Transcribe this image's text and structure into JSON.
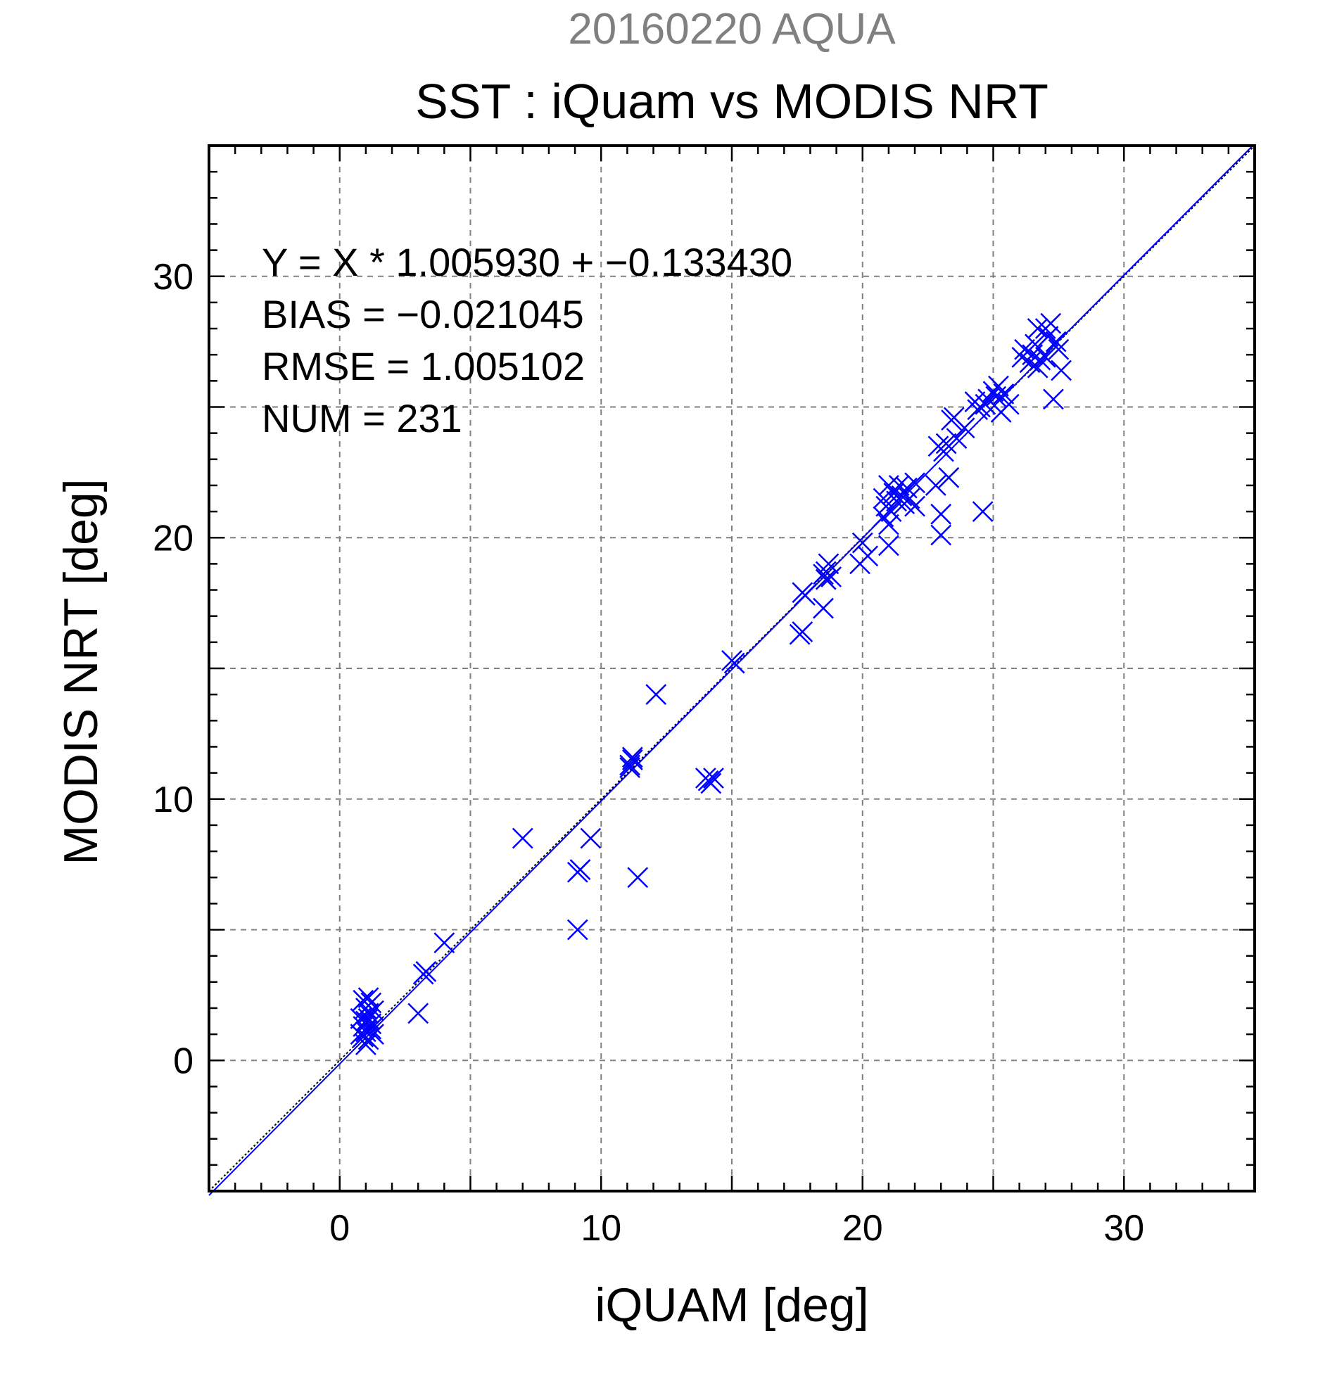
{
  "chart_data": {
    "type": "scatter",
    "supertitle": "20160220 AQUA",
    "title": "SST : iQuam vs MODIS NRT",
    "xlabel": "iQUAM [deg]",
    "ylabel": "MODIS NRT [deg]",
    "xlim": [
      -5,
      35
    ],
    "ylim": [
      -5,
      35
    ],
    "xticks": [
      0,
      10,
      20,
      30
    ],
    "yticks": [
      0,
      10,
      20,
      30
    ],
    "minor_tick_step": 1,
    "grid_step": 5,
    "grid": true,
    "marker": "x",
    "marker_color": "#0000ff",
    "fit_line_color": "#0000ff",
    "identity_line_color": "#000000",
    "stats": {
      "equation": "Y = X * 1.005930 + −0.133430",
      "bias": "BIAS = −0.021045",
      "rmse": "RMSE = 1.005102",
      "num": "NUM = 231"
    },
    "fit": {
      "slope": 1.00593,
      "intercept": -0.13343
    },
    "points": [
      [
        0.8,
        1.0
      ],
      [
        0.9,
        1.3
      ],
      [
        1.0,
        1.5
      ],
      [
        1.0,
        2.0
      ],
      [
        1.1,
        0.8
      ],
      [
        1.1,
        1.8
      ],
      [
        1.2,
        2.2
      ],
      [
        1.2,
        1.2
      ],
      [
        0.9,
        2.3
      ],
      [
        1.0,
        0.6
      ],
      [
        1.3,
        1.0
      ],
      [
        1.1,
        1.6
      ],
      [
        0.8,
        1.6
      ],
      [
        1.0,
        1.1
      ],
      [
        1.2,
        1.4
      ],
      [
        1.1,
        2.4
      ],
      [
        1.3,
        1.9
      ],
      [
        0.9,
        0.9
      ],
      [
        3.0,
        1.8
      ],
      [
        3.2,
        3.3
      ],
      [
        3.3,
        3.4
      ],
      [
        4.0,
        4.5
      ],
      [
        7.0,
        8.5
      ],
      [
        9.1,
        5.0
      ],
      [
        9.2,
        7.3
      ],
      [
        9.1,
        7.2
      ],
      [
        9.6,
        8.5
      ],
      [
        11.1,
        11.2
      ],
      [
        11.2,
        11.5
      ],
      [
        11.2,
        11.6
      ],
      [
        11.1,
        11.3
      ],
      [
        11.4,
        7.0
      ],
      [
        12.1,
        14.0
      ],
      [
        14.0,
        10.8
      ],
      [
        14.1,
        10.7
      ],
      [
        14.3,
        10.8
      ],
      [
        14.2,
        10.6
      ],
      [
        15.0,
        15.3
      ],
      [
        15.1,
        15.2
      ],
      [
        17.6,
        16.3
      ],
      [
        17.7,
        16.4
      ],
      [
        17.8,
        17.8
      ],
      [
        17.7,
        17.9
      ],
      [
        18.5,
        17.3
      ],
      [
        18.5,
        18.6
      ],
      [
        18.6,
        18.7
      ],
      [
        18.8,
        18.5
      ],
      [
        18.7,
        19.0
      ],
      [
        18.6,
        18.4
      ],
      [
        19.9,
        19.0
      ],
      [
        20.0,
        19.8
      ],
      [
        20.2,
        19.3
      ],
      [
        20.8,
        20.8
      ],
      [
        20.9,
        21.2
      ],
      [
        20.8,
        21.5
      ],
      [
        21.0,
        19.7
      ],
      [
        21.0,
        20.5
      ],
      [
        21.0,
        22.0
      ],
      [
        21.1,
        21.0
      ],
      [
        21.2,
        21.7
      ],
      [
        21.3,
        21.4
      ],
      [
        21.4,
        22.0
      ],
      [
        21.5,
        21.6
      ],
      [
        21.6,
        21.3
      ],
      [
        21.7,
        21.9
      ],
      [
        21.8,
        21.5
      ],
      [
        22.0,
        21.2
      ],
      [
        22.0,
        22.1
      ],
      [
        22.8,
        22.0
      ],
      [
        22.9,
        23.5
      ],
      [
        23.0,
        20.1
      ],
      [
        23.0,
        20.9
      ],
      [
        23.1,
        23.3
      ],
      [
        23.2,
        23.6
      ],
      [
        23.3,
        22.3
      ],
      [
        23.4,
        24.5
      ],
      [
        23.5,
        24.6
      ],
      [
        23.6,
        23.8
      ],
      [
        23.9,
        24.2
      ],
      [
        24.3,
        25.2
      ],
      [
        24.4,
        24.9
      ],
      [
        24.5,
        25.0
      ],
      [
        24.6,
        21.0
      ],
      [
        24.7,
        25.1
      ],
      [
        24.8,
        25.3
      ],
      [
        25.0,
        25.6
      ],
      [
        25.1,
        25.4
      ],
      [
        25.2,
        25.8
      ],
      [
        25.3,
        24.8
      ],
      [
        25.4,
        25.5
      ],
      [
        25.6,
        25.1
      ],
      [
        26.1,
        26.9
      ],
      [
        26.2,
        27.2
      ],
      [
        26.4,
        26.7
      ],
      [
        26.5,
        27.0
      ],
      [
        26.6,
        27.4
      ],
      [
        26.7,
        26.5
      ],
      [
        26.7,
        28.0
      ],
      [
        26.8,
        26.8
      ],
      [
        27.0,
        28.0
      ],
      [
        27.1,
        27.7
      ],
      [
        27.2,
        28.2
      ],
      [
        27.3,
        25.3
      ],
      [
        27.4,
        27.5
      ],
      [
        27.5,
        27.2
      ],
      [
        27.6,
        26.4
      ],
      [
        27.0,
        26.9
      ]
    ]
  }
}
